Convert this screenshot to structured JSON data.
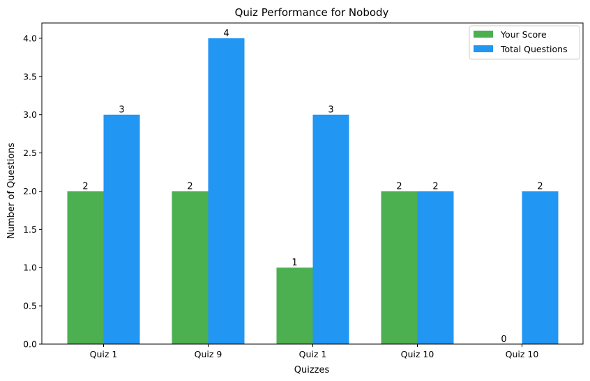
{
  "chart_data": {
    "type": "bar",
    "title": "Quiz Performance for Nobody",
    "xlabel": "Quizzes",
    "ylabel": "Number of Questions",
    "categories": [
      "Quiz 1",
      "Quiz 9",
      "Quiz 1",
      "Quiz 10",
      "Quiz 10"
    ],
    "series": [
      {
        "name": "Your Score",
        "values": [
          2,
          2,
          1,
          2,
          0
        ],
        "color": "#4caf50"
      },
      {
        "name": "Total Questions",
        "values": [
          3,
          4,
          3,
          2,
          2
        ],
        "color": "#2196f3"
      }
    ],
    "ylim": [
      0,
      4.2
    ],
    "yticks": [
      "0.0",
      "0.5",
      "1.0",
      "1.5",
      "2.0",
      "2.5",
      "3.0",
      "3.5",
      "4.0"
    ],
    "grid": false,
    "legend_position": "top-right",
    "data_labels": true
  }
}
